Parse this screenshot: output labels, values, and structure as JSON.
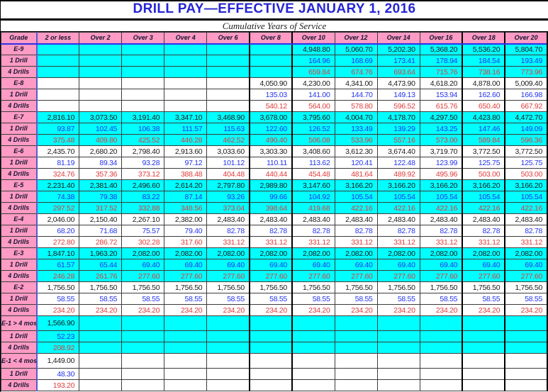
{
  "title": "DRILL PAY—EFFECTIVE JANUARY 1, 2016",
  "subtitle": "Cumulative Years of Service",
  "colors": {
    "header_pink": "#ff9bc4",
    "band_cyan": "#00ffff",
    "title_blue": "#2424d6",
    "drill1_blue": "#2233ee",
    "drill4_red": "#e03a3a",
    "monthly_black": "#1a1a1a"
  },
  "table": {
    "columns": [
      "Grade",
      "2 or less",
      "Over 2",
      "Over 3",
      "Over 4",
      "Over 6",
      "Over 8",
      "Over 10",
      "Over 12",
      "Over 14",
      "Over 16",
      "Over 18",
      "Over 20"
    ],
    "rows": [
      {
        "label": "E-9",
        "kind": "monthly",
        "band": "cyan",
        "values": [
          "",
          "",
          "",
          "",
          "",
          "",
          "4,948.80",
          "5,060.70",
          "5,202.30",
          "5,368.20",
          "5,536.20",
          "5,804.70"
        ]
      },
      {
        "label": "1 Drill",
        "kind": "drill1",
        "band": "cyan",
        "values": [
          "",
          "",
          "",
          "",
          "",
          "",
          "164.96",
          "168.69",
          "173.41",
          "178.94",
          "184.54",
          "193.49"
        ]
      },
      {
        "label": "4 Drills",
        "kind": "drill4",
        "band": "cyan",
        "values": [
          "",
          "",
          "",
          "",
          "",
          "",
          "659.84",
          "674.76",
          "693.64",
          "715.76",
          "738.16",
          "773.96"
        ]
      },
      {
        "label": "E-8",
        "kind": "monthly",
        "band": "white",
        "values": [
          "",
          "",
          "",
          "",
          "",
          "4,050.90",
          "4,230.00",
          "4,341.00",
          "4,473.90",
          "4,618.20",
          "4,878.00",
          "5,009.40"
        ]
      },
      {
        "label": "1 Drill",
        "kind": "drill1",
        "band": "white",
        "values": [
          "",
          "",
          "",
          "",
          "",
          "135.03",
          "141.00",
          "144.70",
          "149.13",
          "153.94",
          "162.60",
          "166.98"
        ]
      },
      {
        "label": "4 Drills",
        "kind": "drill4",
        "band": "white",
        "values": [
          "",
          "",
          "",
          "",
          "",
          "540.12",
          "564.00",
          "578.80",
          "596.52",
          "615.76",
          "650.40",
          "667.92"
        ]
      },
      {
        "label": "E-7",
        "kind": "monthly",
        "band": "cyan",
        "values": [
          "2,816.10",
          "3,073.50",
          "3,191.40",
          "3,347.10",
          "3,468.90",
          "3,678.00",
          "3,795.60",
          "4,004.70",
          "4,178.70",
          "4,297.50",
          "4,423.80",
          "4,472.70"
        ]
      },
      {
        "label": "1 Drill",
        "kind": "drill1",
        "band": "cyan",
        "values": [
          "93.87",
          "102.45",
          "106.38",
          "111.57",
          "115.63",
          "122.60",
          "126.52",
          "133.49",
          "139.29",
          "143.25",
          "147.46",
          "149.09"
        ]
      },
      {
        "label": "4 Drills",
        "kind": "drill4",
        "band": "cyan",
        "values": [
          "375.48",
          "409.80",
          "425.52",
          "446.28",
          "462.52",
          "490.40",
          "506.08",
          "533.96",
          "557.16",
          "573.00",
          "589.84",
          "596.36"
        ]
      },
      {
        "label": "E-6",
        "kind": "monthly",
        "band": "white",
        "values": [
          "2,435.70",
          "2,680.20",
          "2,798.40",
          "2,913.60",
          "3,033.60",
          "3,303.30",
          "3,408.60",
          "3,612.30",
          "3,674.40",
          "3,719.70",
          "3,772.50",
          "3,772.50"
        ]
      },
      {
        "label": "1 Drill",
        "kind": "drill1",
        "band": "white",
        "values": [
          "81.19",
          "89.34",
          "93.28",
          "97.12",
          "101.12",
          "110.11",
          "113.62",
          "120.41",
          "122.48",
          "123.99",
          "125.75",
          "125.75"
        ]
      },
      {
        "label": "4 Drills",
        "kind": "drill4",
        "band": "white",
        "values": [
          "324.76",
          "357.36",
          "373.12",
          "388.48",
          "404.48",
          "440.44",
          "454.48",
          "481.64",
          "489.92",
          "495.96",
          "503.00",
          "503.00"
        ]
      },
      {
        "label": "E-5",
        "kind": "monthly",
        "band": "cyan",
        "values": [
          "2,231.40",
          "2,381.40",
          "2,496.60",
          "2,614.20",
          "2,797.80",
          "2,989.80",
          "3,147.60",
          "3,166.20",
          "3,166.20",
          "3,166.20",
          "3,166.20",
          "3,166.20"
        ]
      },
      {
        "label": "1 Drill",
        "kind": "drill1",
        "band": "cyan",
        "values": [
          "74.38",
          "79.38",
          "83.22",
          "87.14",
          "93.26",
          "99.66",
          "104.92",
          "105.54",
          "105.54",
          "105.54",
          "105.54",
          "105.54"
        ]
      },
      {
        "label": "4 Drills",
        "kind": "drill4",
        "band": "cyan",
        "values": [
          "297.52",
          "317.52",
          "332.88",
          "348.56",
          "373.04",
          "398.64",
          "419.68",
          "422.16",
          "422.16",
          "422.16",
          "422.16",
          "422.16"
        ]
      },
      {
        "label": "E-4",
        "kind": "monthly",
        "band": "white",
        "values": [
          "2,046.00",
          "2,150.40",
          "2,267.10",
          "2,382.00",
          "2,483.40",
          "2,483.40",
          "2,483.40",
          "2,483.40",
          "2,483.40",
          "2,483.40",
          "2,483.40",
          "2,483.40"
        ]
      },
      {
        "label": "1 Drill",
        "kind": "drill1",
        "band": "white",
        "values": [
          "68.20",
          "71.68",
          "75.57",
          "79.40",
          "82.78",
          "82.78",
          "82.78",
          "82.78",
          "82.78",
          "82.78",
          "82.78",
          "82.78"
        ]
      },
      {
        "label": "4 Drills",
        "kind": "drill4",
        "band": "white",
        "values": [
          "272.80",
          "286.72",
          "302.28",
          "317.60",
          "331.12",
          "331.12",
          "331.12",
          "331.12",
          "331.12",
          "331.12",
          "331.12",
          "331.12"
        ]
      },
      {
        "label": "E-3",
        "kind": "monthly",
        "band": "cyan",
        "values": [
          "1,847.10",
          "1,963.20",
          "2,082.00",
          "2,082.00",
          "2,082.00",
          "2,082.00",
          "2,082.00",
          "2,082.00",
          "2,082.00",
          "2,082.00",
          "2,082.00",
          "2,082.00"
        ]
      },
      {
        "label": "1 Drill",
        "kind": "drill1",
        "band": "cyan",
        "values": [
          "61.57",
          "65.44",
          "69.40",
          "69.40",
          "69.40",
          "69.40",
          "69.40",
          "69.40",
          "69.40",
          "69.40",
          "69.40",
          "69.40"
        ]
      },
      {
        "label": "4 Drills",
        "kind": "drill4",
        "band": "cyan",
        "values": [
          "246.28",
          "261.76",
          "277.60",
          "277.60",
          "277.60",
          "277.60",
          "277.60",
          "277.60",
          "277.60",
          "277.60",
          "277.60",
          "277.60"
        ]
      },
      {
        "label": "E-2",
        "kind": "monthly",
        "band": "white",
        "values": [
          "1,756.50",
          "1,756.50",
          "1,756.50",
          "1,756.50",
          "1,756.50",
          "1,756.50",
          "1,756.50",
          "1,756.50",
          "1,756.50",
          "1,756.50",
          "1,756.50",
          "1,756.50"
        ]
      },
      {
        "label": "1 Drill",
        "kind": "drill1",
        "band": "white",
        "values": [
          "58.55",
          "58.55",
          "58.55",
          "58.55",
          "58.55",
          "58.55",
          "58.55",
          "58.55",
          "58.55",
          "58.55",
          "58.55",
          "58.55"
        ]
      },
      {
        "label": "4 Drills",
        "kind": "drill4",
        "band": "white",
        "values": [
          "234.20",
          "234.20",
          "234.20",
          "234.20",
          "234.20",
          "234.20",
          "234.20",
          "234.20",
          "234.20",
          "234.20",
          "234.20",
          "234.20"
        ]
      },
      {
        "label": "E-1 > 4 mos",
        "kind": "monthly",
        "band": "cyan",
        "tall": true,
        "values": [
          "1,566.90",
          "",
          "",
          "",
          "",
          "",
          "",
          "",
          "",
          "",
          "",
          ""
        ]
      },
      {
        "label": "1 Drill",
        "kind": "drill1",
        "band": "cyan",
        "values": [
          "52.23",
          "",
          "",
          "",
          "",
          "",
          "",
          "",
          "",
          "",
          "",
          ""
        ]
      },
      {
        "label": "4 Drills",
        "kind": "drill4",
        "band": "cyan",
        "values": [
          "208.92",
          "",
          "",
          "",
          "",
          "",
          "",
          "",
          "",
          "",
          "",
          ""
        ]
      },
      {
        "label": "E-1 < 4 mos",
        "kind": "monthly",
        "band": "white",
        "tall": true,
        "values": [
          "1,449.00",
          "",
          "",
          "",
          "",
          "",
          "",
          "",
          "",
          "",
          "",
          ""
        ]
      },
      {
        "label": "1 Drill",
        "kind": "drill1",
        "band": "white",
        "values": [
          "48.30",
          "",
          "",
          "",
          "",
          "",
          "",
          "",
          "",
          "",
          "",
          ""
        ]
      },
      {
        "label": "4 Drills",
        "kind": "drill4",
        "band": "white",
        "values": [
          "193.20",
          "",
          "",
          "",
          "",
          "",
          "",
          "",
          "",
          "",
          "",
          ""
        ]
      }
    ]
  }
}
